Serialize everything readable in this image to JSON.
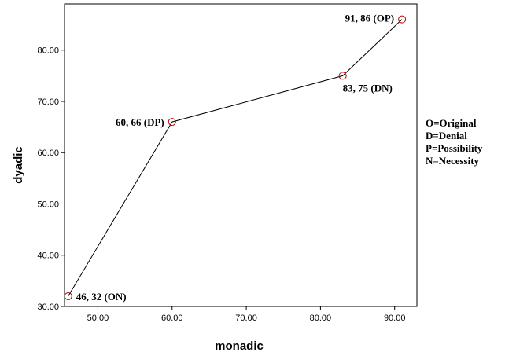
{
  "chart_data": {
    "type": "line",
    "xlabel": "monadic",
    "ylabel": "dyadic",
    "xlim": [
      45.5,
      93
    ],
    "ylim": [
      30,
      89
    ],
    "x_ticks": [
      50,
      60,
      70,
      80,
      90
    ],
    "x_tick_labels": [
      "50.00",
      "60.00",
      "70.00",
      "80.00",
      "90.00"
    ],
    "y_ticks": [
      30,
      40,
      50,
      60,
      70,
      80
    ],
    "y_tick_labels": [
      "30.00",
      "40.00",
      "50.00",
      "60.00",
      "70.00",
      "80.00"
    ],
    "grid": false,
    "series": [
      {
        "points": [
          {
            "x": 46,
            "y": 32,
            "label": "46, 32 (ON)"
          },
          {
            "x": 60,
            "y": 66,
            "label": "60, 66 (DP)"
          },
          {
            "x": 83,
            "y": 75,
            "label": "83, 75 (DN)"
          },
          {
            "x": 91,
            "y": 86,
            "label": "91, 86 (OP)"
          }
        ]
      }
    ],
    "colors": {
      "line": "#000000",
      "marker": "#c00000"
    },
    "legend_placement": "right",
    "legend_text": [
      "O=Original",
      "D=Denial",
      "P=Possibility",
      "N=Necessity"
    ]
  }
}
